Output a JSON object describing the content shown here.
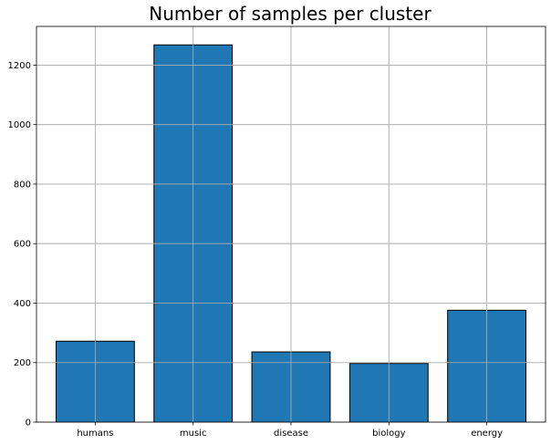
{
  "chart_data": {
    "type": "bar",
    "title": "Number of samples per cluster",
    "xlabel": "",
    "ylabel": "",
    "categories": [
      "humans",
      "music",
      "disease",
      "biology",
      "energy"
    ],
    "values": [
      272,
      1268,
      236,
      197,
      376
    ],
    "ylim": [
      0,
      1330
    ],
    "yticks": [
      0,
      200,
      400,
      600,
      800,
      1000,
      1200
    ],
    "grid": true,
    "bar_color": "#1f77b4",
    "bar_edge_color": "#000000",
    "grid_color": "#b0b0b0"
  }
}
